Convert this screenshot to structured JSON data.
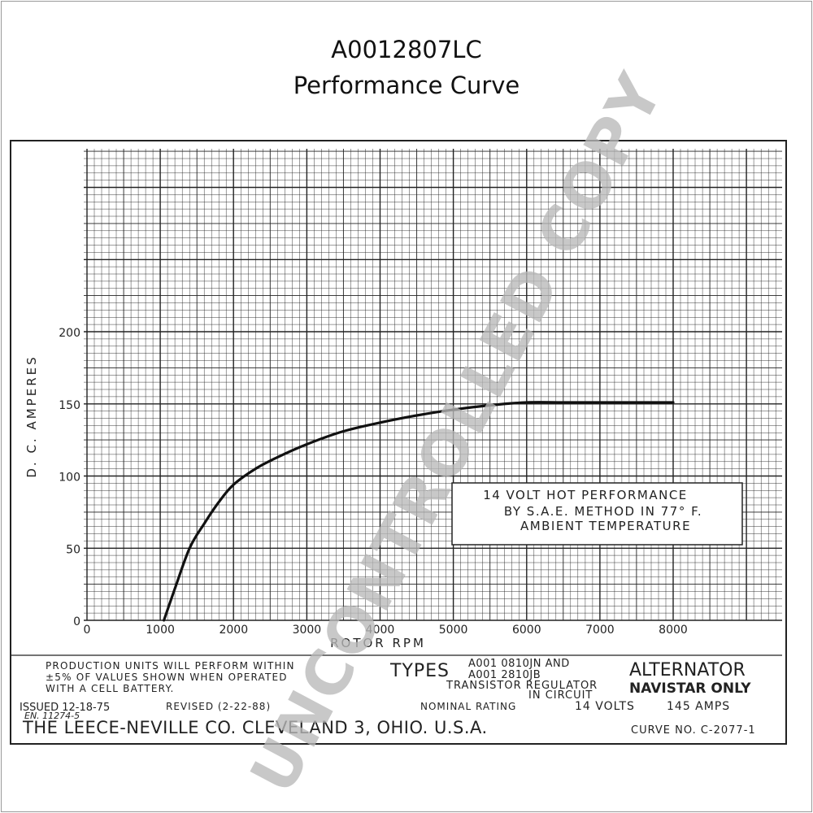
{
  "page": {
    "title": "A0012807LC",
    "subtitle": "Performance Curve",
    "watermark": "UNCONTROLLED COPY"
  },
  "chart_data": {
    "type": "line",
    "xlabel": "ROTOR RPM",
    "ylabel": "D. C. AMPERES",
    "xlim": [
      0,
      9000
    ],
    "ylim": [
      0,
      200
    ],
    "x_ticks": [
      "0",
      "1000",
      "2000",
      "3000",
      "4000",
      "5000",
      "6000",
      "7000",
      "8000"
    ],
    "y_ticks": [
      "0",
      "50",
      "100",
      "150",
      "200"
    ],
    "grid": true,
    "series": [
      {
        "x": [
          1050,
          1200,
          1400,
          1600,
          1800,
          2000,
          2300,
          2600,
          3000,
          3500,
          4000,
          4500,
          5000,
          5500,
          6000,
          6500,
          7000,
          7500,
          8000
        ],
        "y": [
          0,
          22,
          50,
          67,
          82,
          94,
          105,
          113,
          122,
          131,
          137,
          142,
          146,
          149,
          151,
          151,
          151,
          151,
          151
        ]
      }
    ],
    "annotation": [
      "14 VOLT HOT PERFORMANCE",
      "BY S.A.E. METHOD IN 77° F.",
      "AMBIENT TEMPERATURE"
    ],
    "color": "#111111"
  },
  "footer": {
    "production_note": [
      "PRODUCTION UNITS WILL PERFORM WITHIN",
      "±5% OF VALUES SHOWN WHEN OPERATED",
      "WITH A         CELL BATTERY."
    ],
    "types_label": "TYPES",
    "types_values": [
      "A001 0810JN AND",
      "A001 2810JB"
    ],
    "regulator": [
      "TRANSISTOR REGULATOR",
      "IN CIRCUIT"
    ],
    "alternator": "ALTERNATOR",
    "navistar": "NAVISTAR ONLY",
    "issued": "ISSUED 12-18-75",
    "en": "EN. 11274-5",
    "revised": "REVISED           (2-22-88)",
    "nominal_label": "NOMINAL RATING",
    "volts": "14 VOLTS",
    "amps": "145 AMPS",
    "company": "THE LEECE-NEVILLE CO. CLEVELAND 3, OHIO. U.S.A.",
    "curve_no": "CURVE NO. C-2077-1"
  }
}
